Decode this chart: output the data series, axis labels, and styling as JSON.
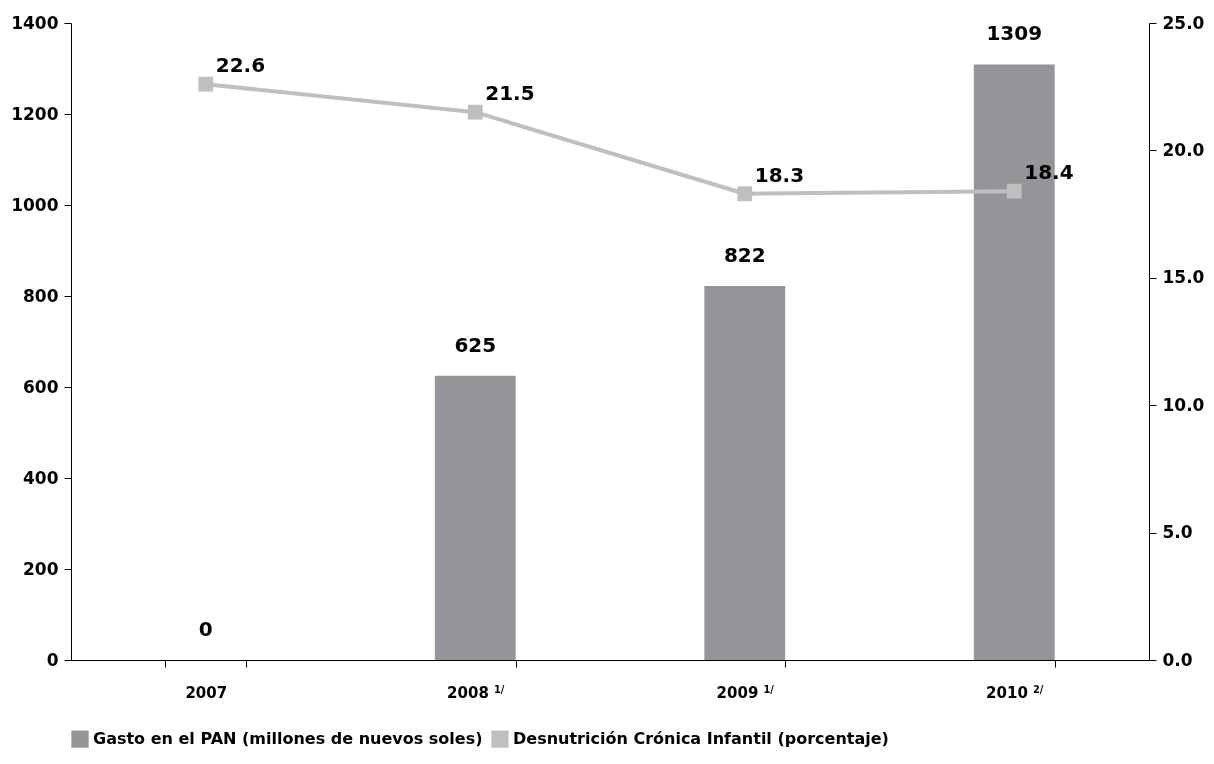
{
  "chart_data": {
    "type": "bar",
    "categories": [
      "2007",
      "2008 $^{1/}$",
      "2009 $^{1/}$",
      "2010 $^{2/}$"
    ],
    "series": [
      {
        "name": "Gasto en el PAN (millones de nuevos soles)",
        "color": "#939598",
        "values": [
          0,
          625,
          822,
          1309
        ]
      },
      {
        "name": "Desnutrición Crónica Infantil (porcentaje)",
        "type": "line",
        "axis": "y2",
        "color": "#bfbfbf",
        "values": [
          22.6,
          21.5,
          18.3,
          18.4
        ]
      }
    ],
    "ylim": [
      0,
      1400
    ],
    "yticks": [
      0,
      200,
      400,
      600,
      800,
      1000,
      1200,
      1400
    ],
    "y2lim": [
      0,
      25
    ],
    "y2ticks": [
      {
        "value": 0,
        "label": "0.0"
      },
      {
        "value": 5,
        "label": "5.0"
      },
      {
        "value": 10,
        "label": "10.0"
      },
      {
        "value": 15,
        "label": "15.0"
      },
      {
        "value": 20,
        "label": "20.0"
      },
      {
        "value": 25,
        "label": "25.0"
      }
    ],
    "data_labels": true,
    "legend": "bottom",
    "marker": "square",
    "grid": false
  }
}
